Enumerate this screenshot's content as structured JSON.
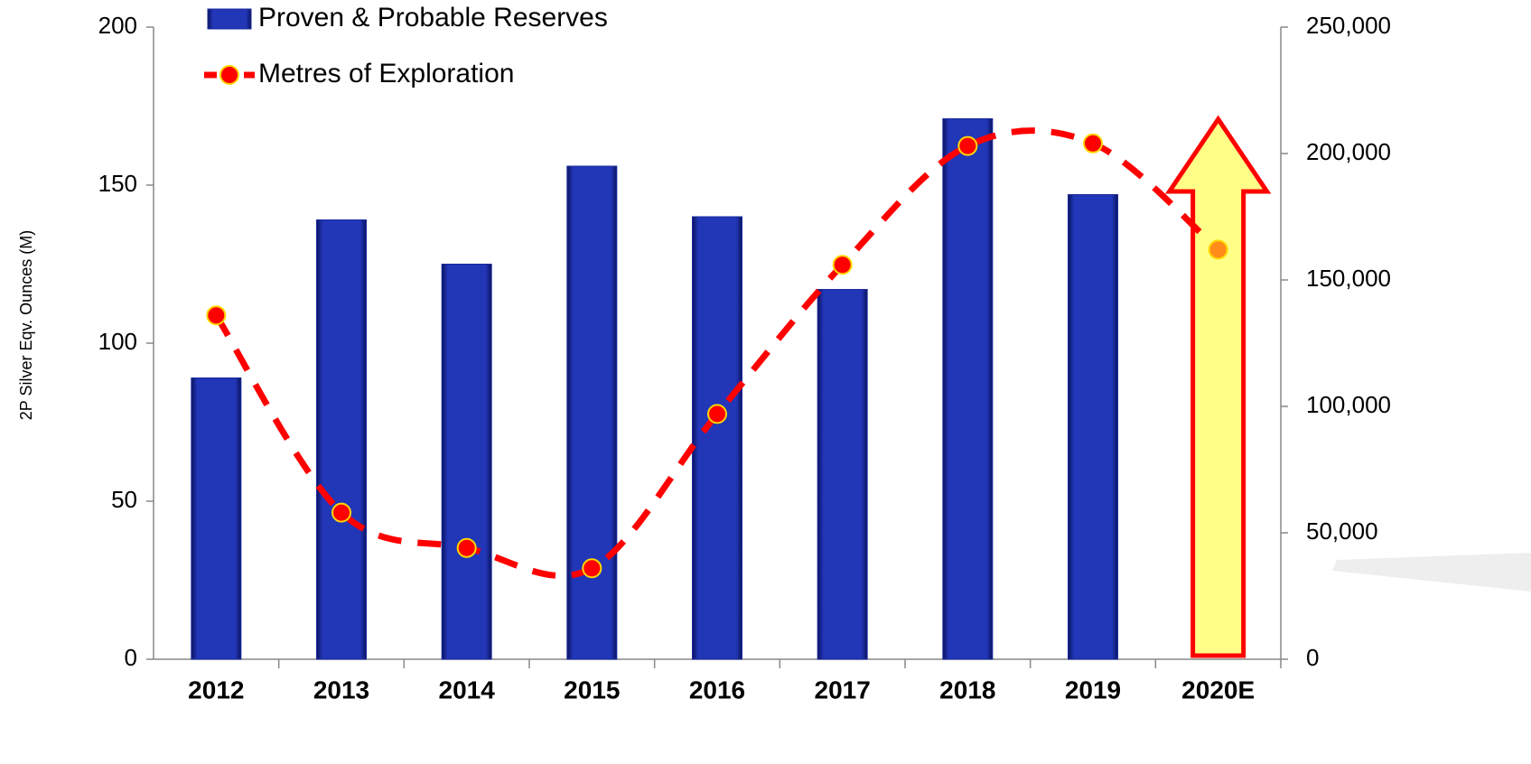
{
  "chart_data": {
    "type": "bar_line",
    "y_axis_label": "2P Silver Eqv. Ounces (M)",
    "categories": [
      "2012",
      "2013",
      "2014",
      "2015",
      "2016",
      "2017",
      "2018",
      "2019",
      "2020E"
    ],
    "series": [
      {
        "name": "Proven & Probable Reserves",
        "type": "bar",
        "color": "#1a2a9c",
        "values": [
          89,
          139,
          125,
          156,
          140,
          117,
          171,
          147,
          null
        ]
      },
      {
        "name": "Metres of Exploration",
        "type": "line",
        "axis": "y2",
        "color": "#ff0000",
        "marker_colors": [
          "#ff0000",
          "#ff0000",
          "#ff0000",
          "#ff0000",
          "#ff0000",
          "#ff0000",
          "#ff0000",
          "#ff0000",
          "#ff8c1a"
        ],
        "values": [
          136000,
          58000,
          44000,
          36000,
          97000,
          156000,
          203000,
          204000,
          162000
        ]
      }
    ],
    "ylim": [
      0,
      200
    ],
    "yticks": [
      0,
      50,
      100,
      150,
      200
    ],
    "y2lim": [
      0,
      250000
    ],
    "y2ticks": [
      0,
      {
        "value": 50000,
        "label": "50,000"
      },
      {
        "value": 100000,
        "label": "100,000"
      },
      {
        "value": 150000,
        "label": "150,000"
      },
      {
        "value": 200000,
        "label": "200,000"
      },
      {
        "value": 250000,
        "label": "250,000"
      }
    ]
  }
}
